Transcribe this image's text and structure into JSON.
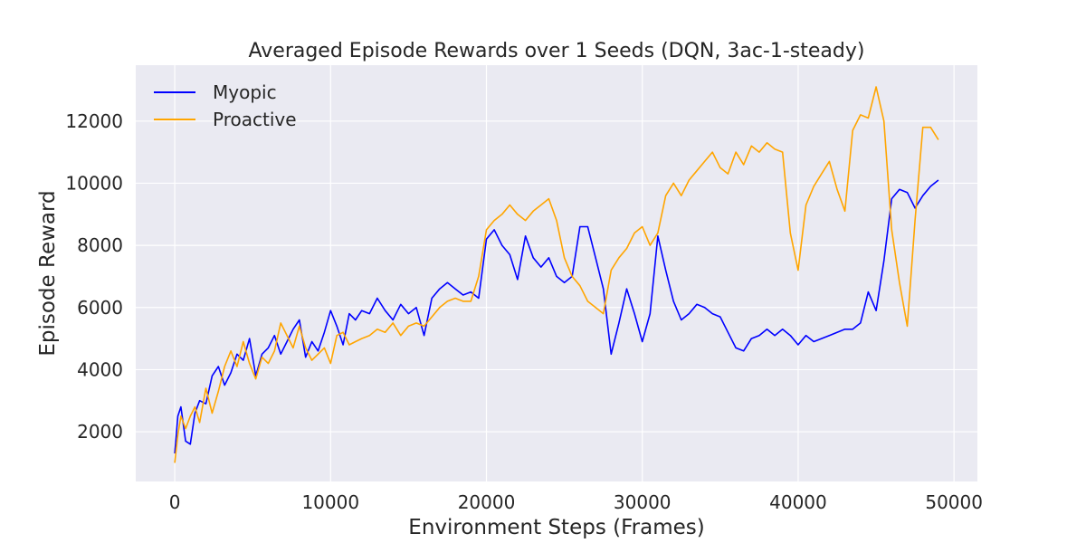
{
  "chart_data": {
    "type": "line",
    "title": "Averaged Episode Rewards over 1 Seeds (DQN, 3ac-1-steady)",
    "xlabel": "Environment Steps (Frames)",
    "ylabel": "Episode Reward",
    "xlim": [
      -2500,
      51500
    ],
    "ylim": [
      400,
      13800
    ],
    "xticks": [
      0,
      10000,
      20000,
      30000,
      40000,
      50000
    ],
    "xtick_labels": [
      "0",
      "10000",
      "20000",
      "30000",
      "40000",
      "50000"
    ],
    "yticks": [
      2000,
      4000,
      6000,
      8000,
      10000,
      12000
    ],
    "ytick_labels": [
      "2000",
      "4000",
      "6000",
      "8000",
      "10000",
      "12000"
    ],
    "grid": true,
    "legend_position": "top-left",
    "background_color": "#eaeaf2",
    "grid_color": "#ffffff",
    "series": [
      {
        "name": "Myopic",
        "color": "#0000ff",
        "x": [
          0,
          200,
          400,
          700,
          1000,
          1300,
          1600,
          2000,
          2400,
          2800,
          3200,
          3600,
          4000,
          4400,
          4800,
          5200,
          5600,
          6000,
          6400,
          6800,
          7200,
          7600,
          8000,
          8400,
          8800,
          9200,
          9600,
          10000,
          10400,
          10800,
          11200,
          11600,
          12000,
          12500,
          13000,
          13500,
          14000,
          14500,
          15000,
          15500,
          16000,
          16500,
          17000,
          17500,
          18000,
          18500,
          19000,
          19500,
          20000,
          20500,
          21000,
          21500,
          22000,
          22500,
          23000,
          23500,
          24000,
          24500,
          25000,
          25500,
          26000,
          26500,
          27000,
          27500,
          28000,
          28500,
          29000,
          29500,
          30000,
          30500,
          31000,
          31500,
          32000,
          32500,
          33000,
          33500,
          34000,
          34500,
          35000,
          35500,
          36000,
          36500,
          37000,
          37500,
          38000,
          38500,
          39000,
          39500,
          40000,
          40500,
          41000,
          41500,
          42000,
          42500,
          43000,
          43500,
          44000,
          44500,
          45000,
          45500,
          46000,
          46500,
          47000,
          47500,
          48000,
          48500,
          49000
        ],
        "y": [
          1300,
          2500,
          2800,
          1700,
          1600,
          2600,
          3000,
          2900,
          3800,
          4100,
          3500,
          3900,
          4500,
          4300,
          5000,
          3800,
          4500,
          4700,
          5100,
          4500,
          4900,
          5300,
          5600,
          4400,
          4900,
          4600,
          5200,
          5900,
          5400,
          4800,
          5800,
          5600,
          5900,
          5800,
          6300,
          5900,
          5600,
          6100,
          5800,
          6000,
          5100,
          6300,
          6600,
          6800,
          6600,
          6400,
          6500,
          6300,
          8200,
          8500,
          8000,
          7700,
          6900,
          8300,
          7600,
          7300,
          7600,
          7000,
          6800,
          7000,
          8600,
          8600,
          7600,
          6600,
          4500,
          5500,
          6600,
          5800,
          4900,
          5800,
          8300,
          7200,
          6200,
          5600,
          5800,
          6100,
          6000,
          5800,
          5700,
          5200,
          4700,
          4600,
          5000,
          5100,
          5300,
          5100,
          5300,
          5100,
          4800,
          5100,
          4900,
          5000,
          5100,
          5200,
          5300,
          5300,
          5500,
          6500,
          5900,
          7500,
          9500,
          9800,
          9700,
          9200,
          9600,
          9900,
          10100
        ]
      },
      {
        "name": "Proactive",
        "color": "#ffa500",
        "x": [
          0,
          200,
          400,
          700,
          1000,
          1300,
          1600,
          2000,
          2400,
          2800,
          3200,
          3600,
          4000,
          4400,
          4800,
          5200,
          5600,
          6000,
          6400,
          6800,
          7200,
          7600,
          8000,
          8400,
          8800,
          9200,
          9600,
          10000,
          10400,
          10800,
          11200,
          11600,
          12000,
          12500,
          13000,
          13500,
          14000,
          14500,
          15000,
          15500,
          16000,
          16500,
          17000,
          17500,
          18000,
          18500,
          19000,
          19500,
          20000,
          20500,
          21000,
          21500,
          22000,
          22500,
          23000,
          23500,
          24000,
          24500,
          25000,
          25500,
          26000,
          26500,
          27000,
          27500,
          28000,
          28500,
          29000,
          29500,
          30000,
          30500,
          31000,
          31500,
          32000,
          32500,
          33000,
          33500,
          34000,
          34500,
          35000,
          35500,
          36000,
          36500,
          37000,
          37500,
          38000,
          38500,
          39000,
          39500,
          40000,
          40500,
          41000,
          41500,
          42000,
          42500,
          43000,
          43500,
          44000,
          44500,
          45000,
          45500,
          46000,
          46500,
          47000,
          47500,
          48000,
          48500,
          49000
        ],
        "y": [
          1000,
          1900,
          2500,
          2100,
          2500,
          2800,
          2300,
          3400,
          2600,
          3300,
          4100,
          4600,
          4100,
          4900,
          4200,
          3700,
          4400,
          4200,
          4600,
          5500,
          5100,
          4700,
          5400,
          4700,
          4300,
          4500,
          4700,
          4200,
          5100,
          5200,
          4800,
          4900,
          5000,
          5100,
          5300,
          5200,
          5500,
          5100,
          5400,
          5500,
          5400,
          5700,
          6000,
          6200,
          6300,
          6200,
          6200,
          7000,
          8500,
          8800,
          9000,
          9300,
          9000,
          8800,
          9100,
          9300,
          9500,
          8800,
          7600,
          7000,
          6700,
          6200,
          6000,
          5800,
          7200,
          7600,
          7900,
          8400,
          8600,
          8000,
          8400,
          9600,
          10000,
          9600,
          10100,
          10400,
          10700,
          11000,
          10500,
          10300,
          11000,
          10600,
          11200,
          11000,
          11300,
          11100,
          11000,
          8400,
          7200,
          9300,
          9900,
          10300,
          10700,
          9800,
          9100,
          11700,
          12200,
          12100,
          13100,
          12000,
          8500,
          6800,
          5400,
          8800,
          11800,
          11800,
          11400
        ]
      }
    ]
  }
}
